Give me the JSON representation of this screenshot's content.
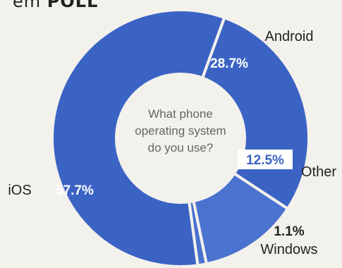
{
  "header": {
    "prefix": "em",
    "word": "POLL"
  },
  "chart_data": {
    "type": "pie",
    "title": "What phone operating system do you use?",
    "title_lines": [
      "What phone",
      "operating system",
      "do you use?"
    ],
    "slices": [
      {
        "label": "Android",
        "value": 28.7,
        "value_label": "28.7%",
        "color": "#3b63c4"
      },
      {
        "label": "Other",
        "value": 12.5,
        "value_label": "12.5%",
        "color": "#4a72cf"
      },
      {
        "label": "Windows",
        "value": 1.1,
        "value_label": "1.1%",
        "color": "#4a72cf"
      },
      {
        "label": "iOS",
        "value": 57.7,
        "value_label": "57.7%",
        "color": "#3b63c4"
      }
    ],
    "donut": true,
    "legend": "none"
  }
}
